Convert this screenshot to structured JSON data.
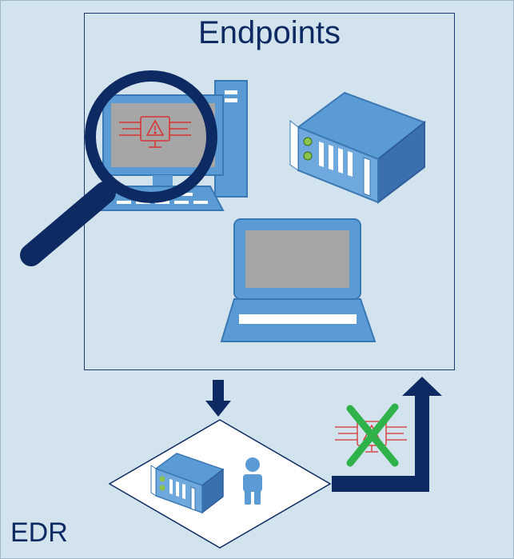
{
  "diagram": {
    "endpoints_title": "Endpoints",
    "edr_label": "EDR"
  },
  "colors": {
    "background": "#d3e3ee",
    "device_blue": "#5b9bd5",
    "dark_navy": "#0e2a63",
    "screen_gray": "#a6a6a6",
    "alert_red": "#d93030",
    "cross_green": "#2fb24a"
  },
  "icons": {
    "desktop": "desktop-computer-icon",
    "server": "server-icon",
    "laptop": "laptop-icon",
    "magnifier": "magnifying-glass-icon",
    "alert_chip": "alert-chip-icon",
    "person": "person-icon",
    "cross": "green-x-icon"
  }
}
